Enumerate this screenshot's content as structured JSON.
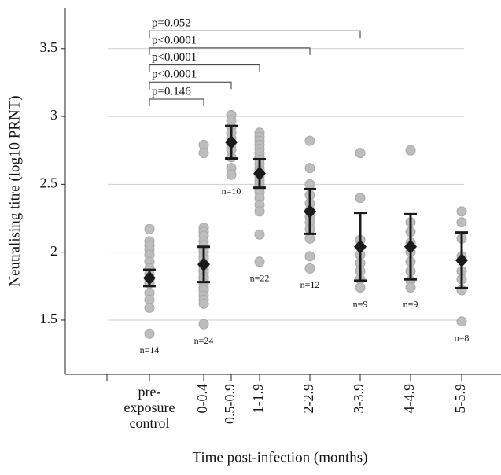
{
  "chart_data": {
    "type": "dot-mean-error",
    "y_label": "Neutralising titre (log10 PRNT)",
    "x_label": "Time post-infection (months)",
    "categories": [
      null,
      "pre-exposure control",
      "0-0.4",
      "0.5-0.9",
      "1-1.9",
      "2-2.9",
      "3-3.9",
      "4-4.9",
      "5-5.9"
    ],
    "points": [
      null,
      [
        2.17,
        2.08,
        2.05,
        2.02,
        1.98,
        1.93,
        1.88,
        1.84,
        1.8,
        1.77,
        1.7,
        1.65,
        1.59,
        1.4
      ],
      [
        2.79,
        2.73,
        2.18,
        2.15,
        2.12,
        2.08,
        2.05,
        2.02,
        2.0,
        1.97,
        1.95,
        1.92,
        1.9,
        1.87,
        1.85,
        1.82,
        1.8,
        1.77,
        1.74,
        1.72,
        1.68,
        1.65,
        1.62,
        1.47
      ],
      [
        3.01,
        2.97,
        2.92,
        2.88,
        2.84,
        2.8,
        2.76,
        2.7,
        2.62,
        2.57
      ],
      [
        2.88,
        2.85,
        2.82,
        2.79,
        2.76,
        2.73,
        2.7,
        2.68,
        2.65,
        2.62,
        2.6,
        2.58,
        2.56,
        2.53,
        2.5,
        2.47,
        2.44,
        2.4,
        2.35,
        2.3,
        2.13,
        1.93
      ],
      [
        2.82,
        2.62,
        2.5,
        2.42,
        2.36,
        2.31,
        2.26,
        2.22,
        2.17,
        2.1,
        1.97,
        1.88
      ],
      [
        2.73,
        2.4,
        2.09,
        2.04,
        1.98,
        1.92,
        1.86,
        1.8,
        1.74
      ],
      [
        2.75,
        2.22,
        2.15,
        2.07,
        2.0,
        1.93,
        1.86,
        1.79,
        1.74
      ],
      [
        2.3,
        2.22,
        2.1,
        1.97,
        1.86,
        1.8,
        1.72,
        1.49
      ]
    ],
    "means": [
      null,
      1.81,
      1.91,
      2.81,
      2.58,
      2.3,
      2.04,
      2.04,
      1.94
    ],
    "errors": [
      null,
      0.06,
      0.13,
      0.12,
      0.105,
      0.165,
      0.25,
      0.24,
      0.205
    ],
    "n_labels": [
      null,
      "n=14",
      "n=24",
      "n=10",
      "n=22",
      "n=12",
      "n=9",
      "n=9",
      "n=8"
    ],
    "comparisons": [
      "p=0.146",
      "p<0.0001",
      "p<0.0001",
      "p<0.0001",
      "p=0.052"
    ],
    "point_color": "#bdbdbd",
    "mean_color": "#1a1a1a",
    "ylim": [
      1.1,
      3.8
    ],
    "yticks": [
      {
        "value": 1.5,
        "label": "1.5"
      },
      2,
      {
        "value": 2.5,
        "label": "2.5"
      },
      3,
      {
        "value": 3.5,
        "label": "3.5"
      }
    ],
    "grid": true
  }
}
